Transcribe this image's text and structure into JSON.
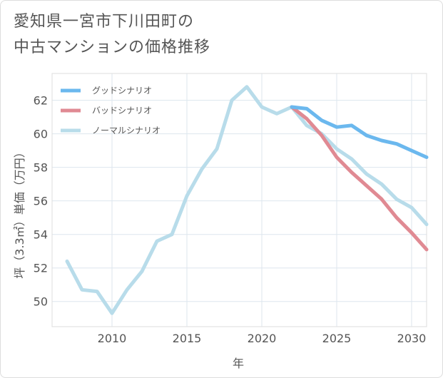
{
  "chart_data": {
    "type": "line",
    "title_lines": [
      "愛知県一宮市下川田町の",
      "中古マンションの価格推移"
    ],
    "xlabel": "年",
    "ylabel": "坪（3.3㎡）単価（万円）",
    "xlim": [
      2006,
      2031
    ],
    "ylim": [
      48.5,
      63.6
    ],
    "xticks": [
      2010,
      2015,
      2020,
      2025,
      2030
    ],
    "yticks": [
      50,
      52,
      54,
      56,
      58,
      60,
      62
    ],
    "grid": true,
    "legend_position": "top-left",
    "series": [
      {
        "name": "グッドシナリオ",
        "color": "#6bb8ee",
        "x": [
          2022,
          2023,
          2024,
          2025,
          2026,
          2027,
          2028,
          2029,
          2030,
          2031
        ],
        "y": [
          61.6,
          61.5,
          60.8,
          60.4,
          60.5,
          59.9,
          59.6,
          59.4,
          59.0,
          58.6
        ]
      },
      {
        "name": "バッドシナリオ",
        "color": "#e08a93",
        "x": [
          2022,
          2023,
          2024,
          2025,
          2026,
          2027,
          2028,
          2029,
          2030,
          2031
        ],
        "y": [
          61.6,
          60.9,
          59.9,
          58.6,
          57.7,
          56.9,
          56.1,
          55.0,
          54.1,
          53.1
        ]
      },
      {
        "name": "ノーマルシナリオ",
        "color": "#b8dcea",
        "x": [
          2007,
          2008,
          2009,
          2010,
          2011,
          2012,
          2013,
          2014,
          2015,
          2016,
          2017,
          2018,
          2019,
          2020,
          2021,
          2022,
          2023,
          2024,
          2025,
          2026,
          2027,
          2028,
          2029,
          2030,
          2031
        ],
        "y": [
          52.4,
          50.7,
          50.6,
          49.3,
          50.7,
          51.8,
          53.6,
          54.0,
          56.3,
          57.9,
          59.1,
          62.0,
          62.8,
          61.6,
          61.2,
          61.6,
          60.5,
          60.0,
          59.1,
          58.5,
          57.6,
          57.0,
          56.1,
          55.6,
          54.6
        ]
      }
    ]
  }
}
